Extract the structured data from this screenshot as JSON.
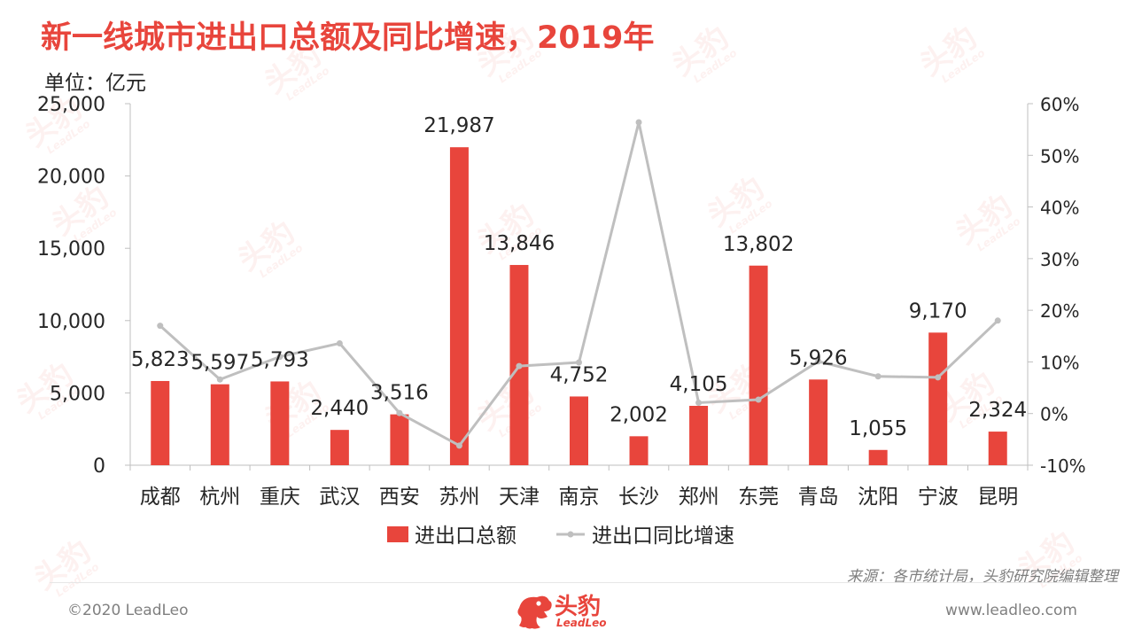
{
  "header": {
    "title": "新一线城市进出口总额及同比增速，2019年",
    "unit": "单位：亿元"
  },
  "chart_data": {
    "type": "bar",
    "categories": [
      "成都",
      "杭州",
      "重庆",
      "武汉",
      "西安",
      "苏州",
      "天津",
      "南京",
      "长沙",
      "郑州",
      "东莞",
      "青岛",
      "沈阳",
      "宁波",
      "昆明"
    ],
    "series": [
      {
        "name": "进出口总额",
        "type": "bar",
        "axis": "left",
        "values": [
          5823,
          5597,
          5793,
          2440,
          3516,
          21987,
          13846,
          4752,
          2002,
          4105,
          13802,
          5926,
          1055,
          9170,
          2324
        ],
        "labels": [
          "5,823",
          "5,597",
          "5,793",
          "2,440",
          "3,516",
          "21,987",
          "13,846",
          "4,752",
          "2,002",
          "4,105",
          "13,802",
          "5,926",
          "1,055",
          "9,170",
          "2,324"
        ],
        "color": "#e8453c"
      },
      {
        "name": "进出口同比增速",
        "type": "line",
        "axis": "right",
        "values": [
          17.0,
          6.6,
          11.0,
          13.6,
          0.1,
          -6.2,
          9.2,
          9.9,
          56.4,
          2.1,
          2.7,
          10.1,
          7.2,
          7.0,
          18.0
        ],
        "color": "#bfbfbf"
      }
    ],
    "y_left": {
      "min": 0,
      "max": 25000,
      "ticks": [
        0,
        5000,
        10000,
        15000,
        20000,
        25000
      ],
      "tick_labels": [
        "0",
        "5,000",
        "10,000",
        "15,000",
        "20,000",
        "25,000"
      ]
    },
    "y_right": {
      "min": -10,
      "max": 60,
      "ticks": [
        -10,
        0,
        10,
        20,
        30,
        40,
        50,
        60
      ],
      "tick_labels": [
        "-10%",
        "0%",
        "10%",
        "20%",
        "30%",
        "40%",
        "50%",
        "60%"
      ]
    },
    "legend_position": "bottom",
    "grid": false
  },
  "footer": {
    "source": "来源：各市统计局，头豹研究院编辑整理",
    "copyright": "©2020 LeadLeo",
    "url": "www.leadleo.com",
    "logo_cn": "头豹",
    "logo_en": "LeadLeo"
  },
  "watermark": {
    "cn": "头豹",
    "en": "LeadLeo"
  }
}
